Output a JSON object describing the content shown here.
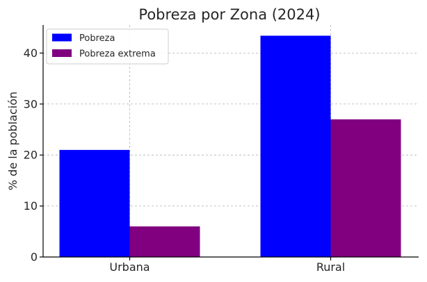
{
  "chart_data": {
    "type": "bar",
    "title": "Pobreza por Zona (2024)",
    "xlabel": "",
    "ylabel": "% de la población",
    "categories": [
      "Urbana",
      "Rural"
    ],
    "series": [
      {
        "name": "Pobreza",
        "color": "#0000ff",
        "values": [
          21.0,
          43.4
        ]
      },
      {
        "name": "Pobreza extrema",
        "color": "#800080",
        "values": [
          6.0,
          27.0
        ]
      }
    ],
    "ylim": [
      0,
      45.5
    ],
    "yticks": [
      0,
      10,
      20,
      30,
      40
    ],
    "grid": true,
    "legend": "top-left"
  }
}
